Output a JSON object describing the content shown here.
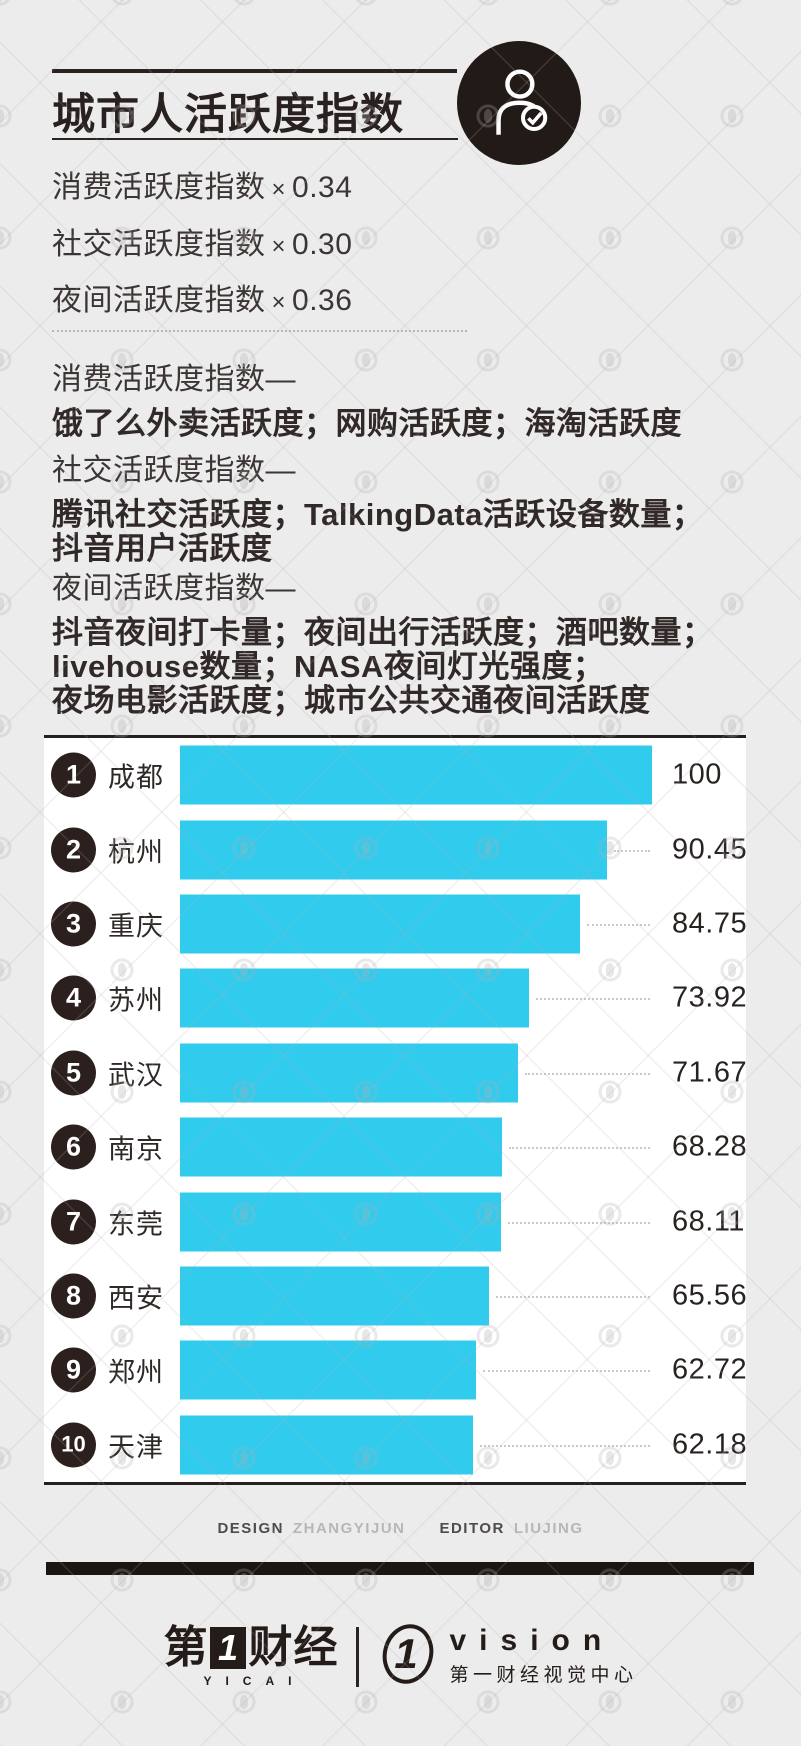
{
  "header": {
    "title": "城市人活跃度指数",
    "icon": "person-check-icon"
  },
  "weights": [
    {
      "label": "消费活跃度指数",
      "op": "×",
      "value": "0.34"
    },
    {
      "label": "社交活跃度指数",
      "op": "×",
      "value": "0.30"
    },
    {
      "label": "夜间活跃度指数",
      "op": "×",
      "value": "0.36"
    }
  ],
  "components": [
    {
      "heading": "消费活跃度指数—",
      "detail": "饿了么外卖活跃度；网购活跃度；海淘活跃度"
    },
    {
      "heading": "社交活跃度指数—",
      "detail": "腾讯社交活跃度；TalkingData活跃设备数量；\n抖音用户活跃度"
    },
    {
      "heading": "夜间活跃度指数—",
      "detail": "抖音夜间打卡量；夜间出行活跃度；酒吧数量；\nlivehouse数量；NASA夜间灯光强度；\n夜场电影活跃度；城市公共交通夜间活跃度"
    }
  ],
  "chart_data": {
    "type": "bar",
    "orientation": "horizontal",
    "title": "城市人活跃度指数",
    "ranks": [
      1,
      2,
      3,
      4,
      5,
      6,
      7,
      8,
      9,
      10
    ],
    "categories": [
      "成都",
      "杭州",
      "重庆",
      "苏州",
      "武汉",
      "南京",
      "东莞",
      "西安",
      "郑州",
      "天津"
    ],
    "values": [
      100,
      90.45,
      84.75,
      73.92,
      71.67,
      68.28,
      68.11,
      65.56,
      62.72,
      62.18
    ],
    "value_labels": [
      "100",
      "90.45",
      "84.75",
      "73.92",
      "71.67",
      "68.28",
      "68.11",
      "65.56",
      "62.72",
      "62.18"
    ],
    "xlim": [
      0,
      100
    ],
    "grid": false,
    "legend": false,
    "bar_color": "#31cbee",
    "badge_color": "#2b201d"
  },
  "credits": {
    "design_label": "DESIGN",
    "design_name": "ZHANGYIJUN",
    "editor_label": "EDITOR",
    "editor_name": "LIUJING"
  },
  "branding": {
    "yicai_cn_prefix": "第",
    "yicai_one": "1",
    "yicai_cn_suffix": "财经",
    "yicai_en": "YICAI",
    "vision_one": "1",
    "vision_en": "vision",
    "vision_cn": "第一财经视觉中心"
  },
  "colors": {
    "background": "#edecec",
    "panel": "#ffffff",
    "accent_cyan": "#31cbee",
    "ink": "#2a2220",
    "badge": "#2b201d",
    "footer_bar": "#1b1513",
    "muted_gray": "#b9b6b5"
  }
}
